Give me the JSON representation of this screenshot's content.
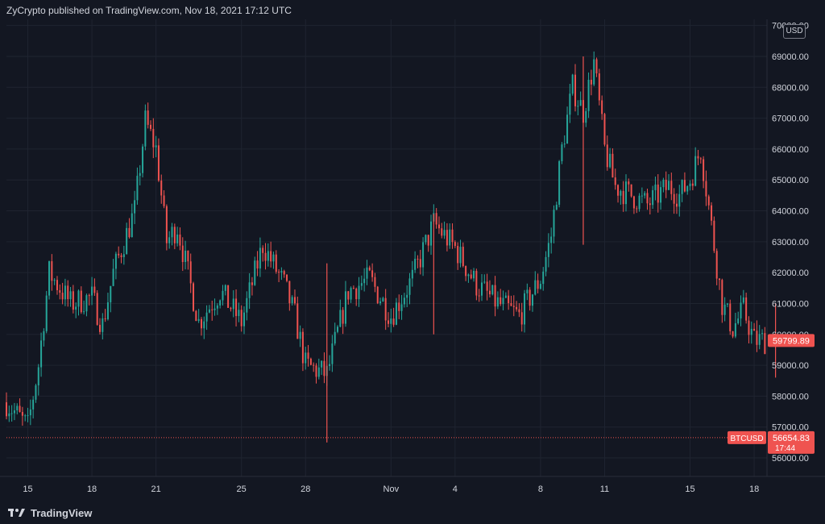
{
  "header": {
    "text": "ZyCrypto published on TradingView.com, Nov 18, 2021 17:12 UTC"
  },
  "footer": {
    "brand": "TradingView"
  },
  "currency": "USD",
  "symbol": {
    "name": "BTCUSD",
    "price": "56654.83",
    "countdown": "17:44"
  },
  "last_price": {
    "label": "59799.89"
  },
  "colors": {
    "up": "#26a69a",
    "down": "#ef5350",
    "bg": "#131722",
    "grid": "#1f2430"
  },
  "chart_data": {
    "type": "candlestick",
    "ylim": [
      55400,
      70200
    ],
    "y_ticks": [
      56000,
      57000,
      58000,
      59000,
      60000,
      61000,
      62000,
      63000,
      64000,
      65000,
      66000,
      67000,
      68000,
      69000,
      70000
    ],
    "y_tick_labels": [
      "56000.00",
      "57000.00",
      "58000.00",
      "59000.00",
      "60000.00",
      "61000.00",
      "62000.00",
      "63000.00",
      "64000.00",
      "65000.00",
      "66000.00",
      "67000.00",
      "68000.00",
      "69000.00",
      "70000.00"
    ],
    "x_ticks": [
      "15",
      "18",
      "21",
      "25",
      "28",
      "Nov",
      "4",
      "8",
      "11",
      "15",
      "18"
    ],
    "x_range": [
      "Oct 14, 2021",
      "Nov 18, 2021"
    ],
    "x_tick_dates": [
      "Oct 15",
      "Oct 18",
      "Oct 21",
      "Oct 25",
      "Oct 28",
      "Nov 1",
      "Nov 4",
      "Nov 8",
      "Nov 11",
      "Nov 15",
      "Nov 18"
    ],
    "price_path": [
      [
        "Oct 14",
        57800
      ],
      [
        "Oct 15",
        57000
      ],
      [
        "Oct 15",
        59000
      ],
      [
        "Oct 16",
        62000
      ],
      [
        "Oct 17",
        61000
      ],
      [
        "Oct 18",
        61200
      ],
      [
        "Oct 18",
        60300
      ],
      [
        "Oct 19",
        62000
      ],
      [
        "Oct 20",
        64000
      ],
      [
        "Oct 20",
        66900
      ],
      [
        "Oct 21",
        66000
      ],
      [
        "Oct 21",
        63000
      ],
      [
        "Oct 22",
        63500
      ],
      [
        "Oct 23",
        60400
      ],
      [
        "Oct 24",
        61400
      ],
      [
        "Oct 25",
        60400
      ],
      [
        "Oct 26",
        62900
      ],
      [
        "Oct 27",
        61600
      ],
      [
        "Oct 27",
        60600
      ],
      [
        "Oct 28",
        59000
      ],
      [
        "Oct 29",
        58700
      ],
      [
        "Oct 30",
        61400
      ],
      [
        "Oct 31",
        61800
      ],
      [
        "Nov 1",
        60600
      ],
      [
        "Nov 2",
        61800
      ],
      [
        "Nov 3",
        63600
      ],
      [
        "Nov 4",
        62800
      ],
      [
        "Nov 5",
        61600
      ],
      [
        "Nov 6",
        61000
      ],
      [
        "Nov 7",
        60600
      ],
      [
        "Nov 8",
        61800
      ],
      [
        "Nov 8",
        63200
      ],
      [
        "Nov 9",
        66000
      ],
      [
        "Nov 9",
        68000
      ],
      [
        "Nov 10",
        67200
      ],
      [
        "Nov 10",
        68800
      ],
      [
        "Nov 11",
        66000
      ],
      [
        "Nov 11",
        64800
      ],
      [
        "Nov 12",
        64600
      ],
      [
        "Nov 13",
        64200
      ],
      [
        "Nov 14",
        64800
      ],
      [
        "Nov 14",
        64500
      ],
      [
        "Nov 15",
        65000
      ],
      [
        "Nov 15",
        66000
      ],
      [
        "Nov 16",
        63500
      ],
      [
        "Nov 16",
        61000
      ],
      [
        "Nov 17",
        60200
      ],
      [
        "Nov 17",
        60800
      ],
      [
        "Nov 18",
        59800
      ]
    ],
    "spikes": [
      {
        "date": "Oct 29",
        "low": 56500,
        "high": 62300
      },
      {
        "date": "Nov 3",
        "low": 60000,
        "high": 63900
      },
      {
        "date": "Nov 10",
        "low": 62900,
        "high": 69000
      },
      {
        "date": "Nov 19",
        "low": 58600,
        "high": 61000
      }
    ],
    "series_colors": {
      "up": "#26a69a",
      "down": "#ef5350"
    },
    "reference_line": {
      "value": 56654.83,
      "style": "dotted",
      "color": "#ef5350"
    },
    "last_value": 59799.89
  }
}
